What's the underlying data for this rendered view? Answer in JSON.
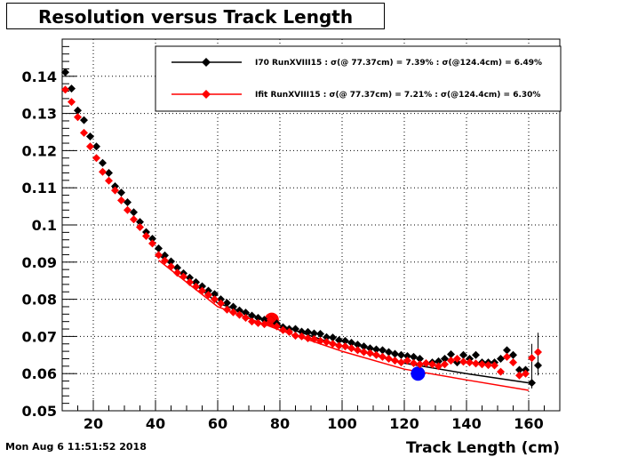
{
  "title": "Resolution versus Track Length",
  "footer": "Mon Aug  6 11:51:52 2018",
  "colors": {
    "frame": "#000000",
    "grid": "#000000",
    "series_black": "#000000",
    "series_red": "#ff0000",
    "blue_marker": "#0000ff"
  },
  "chart_data": {
    "type": "scatter",
    "title": "Resolution versus Track Length",
    "xlabel": "Track Length (cm)",
    "ylabel": "",
    "xlim": [
      10,
      170
    ],
    "ylim": [
      0.05,
      0.15
    ],
    "xticks": [
      20,
      40,
      60,
      80,
      100,
      120,
      140,
      160
    ],
    "xtick_labels": [
      "20",
      "40",
      "60",
      "80",
      "100",
      "120",
      "140",
      "160"
    ],
    "yticks": [
      0.05,
      0.06,
      0.07,
      0.08,
      0.09,
      0.1,
      0.11,
      0.12,
      0.13,
      0.14
    ],
    "ytick_labels": [
      "0.05",
      "0.06",
      "0.07",
      "0.08",
      "0.09",
      "0.1",
      "0.11",
      "0.12",
      "0.13",
      "0.14"
    ],
    "grid": true,
    "legend_position": "top-right",
    "series": [
      {
        "name": "I70  RunXVIII15 : σ(@ 77.37cm) =  7.39% : σ(@124.4cm) =  6.49%",
        "color": "#000000",
        "x": [
          11,
          13,
          15,
          17,
          19,
          21,
          23,
          25,
          27,
          29,
          31,
          33,
          35,
          37,
          39,
          41,
          43,
          45,
          47,
          49,
          51,
          53,
          55,
          57,
          59,
          61,
          63,
          65,
          67,
          69,
          71,
          73,
          75,
          77,
          79,
          81,
          83,
          85,
          87,
          89,
          91,
          93,
          95,
          97,
          99,
          101,
          103,
          105,
          107,
          109,
          111,
          113,
          115,
          117,
          119,
          121,
          123,
          125,
          127,
          129,
          131,
          133,
          135,
          137,
          139,
          141,
          143,
          145,
          147,
          149,
          151,
          153,
          155,
          157,
          159,
          161,
          163
        ],
        "y": [
          0.1411,
          0.1367,
          0.1308,
          0.1282,
          0.1238,
          0.1211,
          0.1167,
          0.114,
          0.1104,
          0.1087,
          0.1061,
          0.1034,
          0.1008,
          0.0981,
          0.0963,
          0.0937,
          0.0918,
          0.0902,
          0.0885,
          0.087,
          0.0858,
          0.0846,
          0.0835,
          0.0823,
          0.0814,
          0.08,
          0.079,
          0.078,
          0.077,
          0.0764,
          0.0756,
          0.075,
          0.0745,
          0.0745,
          0.0735,
          0.0725,
          0.072,
          0.072,
          0.0713,
          0.0712,
          0.0708,
          0.0707,
          0.0698,
          0.0697,
          0.069,
          0.0688,
          0.0683,
          0.0678,
          0.0673,
          0.0668,
          0.0665,
          0.0663,
          0.0658,
          0.0653,
          0.065,
          0.0647,
          0.0645,
          0.064,
          0.0627,
          0.063,
          0.0633,
          0.064,
          0.0652,
          0.063,
          0.065,
          0.064,
          0.065,
          0.063,
          0.063,
          0.063,
          0.064,
          0.0663,
          0.065,
          0.061,
          0.061,
          0.0575,
          0.0622
        ]
      },
      {
        "name": "Ifit RunXVIII15 : σ(@ 77.37cm) =  7.21% : σ(@124.4cm) =  6.30%",
        "color": "#ff0000",
        "x": [
          11,
          13,
          15,
          17,
          19,
          21,
          23,
          25,
          27,
          29,
          31,
          33,
          35,
          37,
          39,
          41,
          43,
          45,
          47,
          49,
          51,
          53,
          55,
          57,
          59,
          61,
          63,
          65,
          67,
          69,
          71,
          73,
          75,
          77,
          79,
          81,
          83,
          85,
          87,
          89,
          91,
          93,
          95,
          97,
          99,
          101,
          103,
          105,
          107,
          109,
          111,
          113,
          115,
          117,
          119,
          121,
          123,
          125,
          127,
          129,
          131,
          133,
          135,
          137,
          139,
          141,
          143,
          145,
          147,
          149,
          151,
          153,
          155,
          157,
          159,
          161,
          163
        ],
        "y": [
          0.1364,
          0.1331,
          0.129,
          0.1248,
          0.1211,
          0.118,
          0.1143,
          0.1119,
          0.1093,
          0.1066,
          0.104,
          0.1015,
          0.0994,
          0.097,
          0.095,
          0.0919,
          0.0904,
          0.0888,
          0.0871,
          0.0861,
          0.0846,
          0.0834,
          0.0823,
          0.0812,
          0.08,
          0.0789,
          0.0772,
          0.0765,
          0.0758,
          0.075,
          0.074,
          0.0736,
          0.0733,
          0.0745,
          0.0727,
          0.0717,
          0.0712,
          0.0702,
          0.07,
          0.0695,
          0.0693,
          0.0688,
          0.0685,
          0.068,
          0.0675,
          0.0673,
          0.0668,
          0.0663,
          0.0658,
          0.0655,
          0.065,
          0.0645,
          0.064,
          0.0635,
          0.063,
          0.0635,
          0.0628,
          0.0625,
          0.0628,
          0.0625,
          0.062,
          0.0625,
          0.0635,
          0.064,
          0.0632,
          0.063,
          0.0627,
          0.0625,
          0.0623,
          0.0622,
          0.0605,
          0.0645,
          0.063,
          0.0595,
          0.06,
          0.0642,
          0.0658
        ]
      }
    ],
    "fit_lines": [
      {
        "color": "#000000",
        "x": [
          41,
          60,
          80,
          100,
          120,
          140,
          160
        ],
        "y": [
          0.092,
          0.079,
          0.073,
          0.0673,
          0.0628,
          0.06,
          0.0575
        ]
      },
      {
        "color": "#ff0000",
        "x": [
          41,
          60,
          80,
          100,
          120,
          140,
          160
        ],
        "y": [
          0.0905,
          0.078,
          0.0717,
          0.066,
          0.0612,
          0.0583,
          0.0555
        ]
      }
    ],
    "highlight_points": [
      {
        "color": "#ff0000",
        "x": 77.37,
        "y": 0.0745
      },
      {
        "color": "#0000ff",
        "x": 124.4,
        "y": 0.06
      }
    ],
    "error_bars": [
      {
        "x": 161,
        "low": 0.056,
        "high": 0.068
      },
      {
        "x": 163,
        "low": 0.0595,
        "high": 0.071
      }
    ]
  }
}
